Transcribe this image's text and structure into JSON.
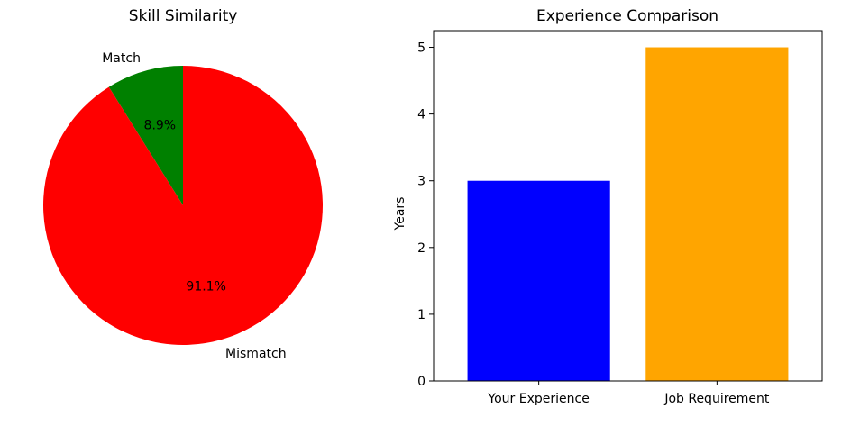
{
  "colors": {
    "match": "#008000",
    "mismatch": "#ff0000",
    "your_experience": "#0000ff",
    "job_requirement": "#ffa500"
  },
  "chart_data": [
    {
      "type": "pie",
      "title": "Skill Similarity",
      "slices": [
        {
          "label": "Match",
          "value": 8.9,
          "pct_label": "8.9%",
          "color": "#008000"
        },
        {
          "label": "Mismatch",
          "value": 91.1,
          "pct_label": "91.1%",
          "color": "#ff0000"
        }
      ],
      "start_angle_deg": 90,
      "direction": "counterclockwise"
    },
    {
      "type": "bar",
      "title": "Experience Comparison",
      "categories": [
        "Your Experience",
        "Job Requirement"
      ],
      "values": [
        3,
        5
      ],
      "colors": [
        "#0000ff",
        "#ffa500"
      ],
      "xlabel": "",
      "ylabel": "Years",
      "ylim": [
        0,
        5.25
      ],
      "yticks": [
        0,
        1,
        2,
        3,
        4,
        5
      ],
      "grid": false
    }
  ]
}
